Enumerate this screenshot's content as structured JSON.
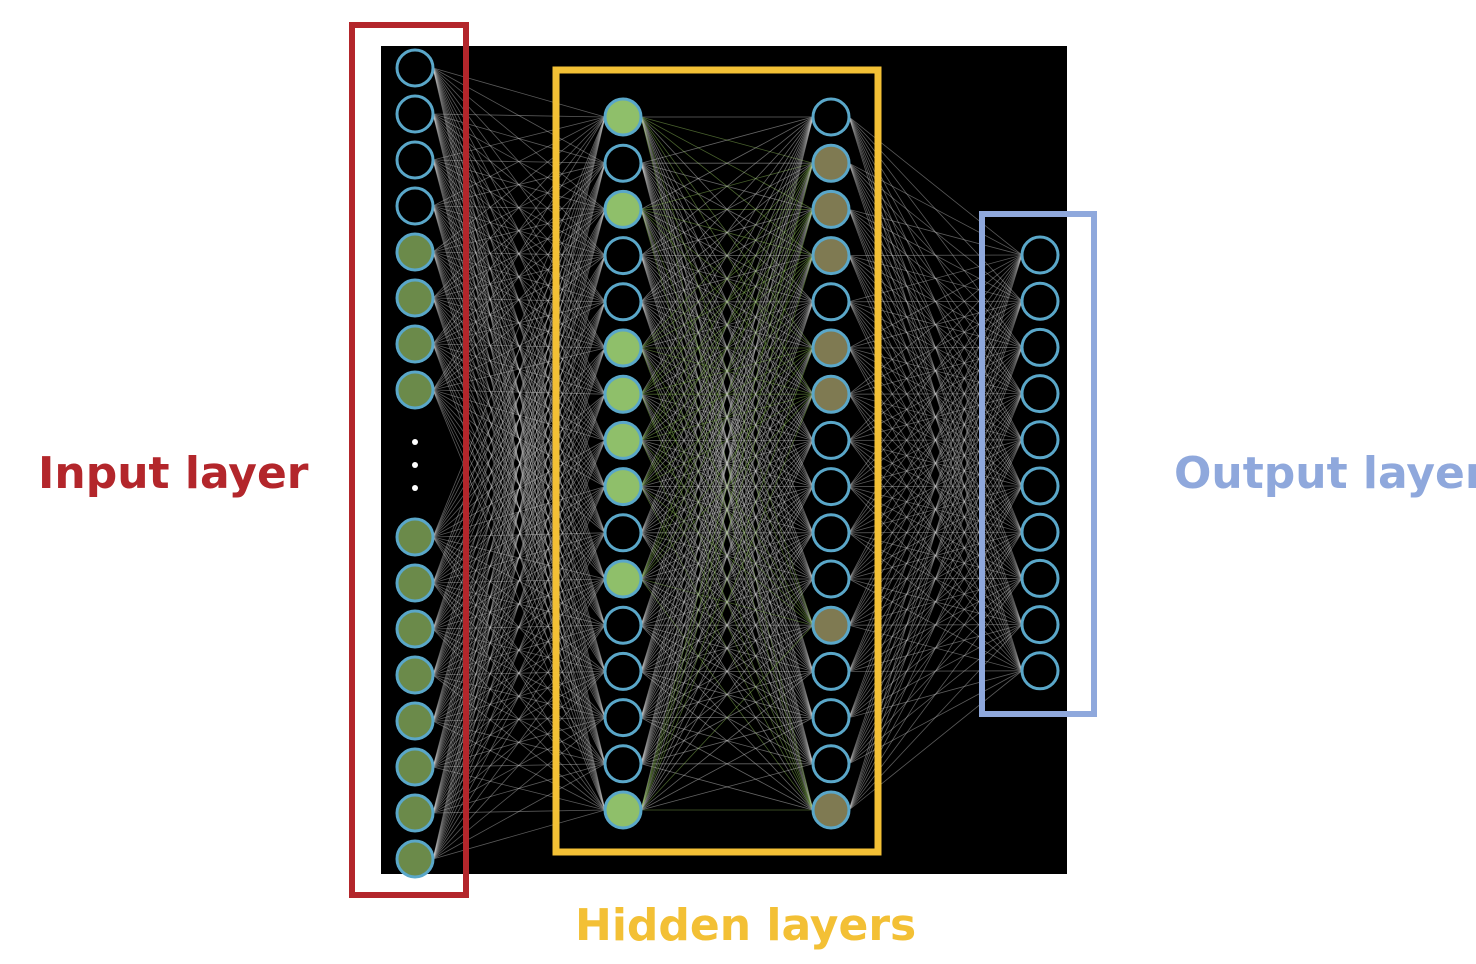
{
  "labels": {
    "input": "Input layer",
    "hidden": "Hidden layers",
    "output": "Output layer"
  },
  "colors": {
    "background": "#ffffff",
    "network_background": "#000000",
    "input_box": "#b3262b",
    "hidden_box": "#f3c035",
    "output_box": "#8fa8dc",
    "node_outline": "#5aa7c9",
    "edge": "#c8c8c8",
    "active_edge": "#8fbf5a",
    "node_active_light": "#8fbf6a",
    "node_active_mid": "#6b8a4a",
    "node_active_olive": "#7f7a52",
    "node_inactive": "#000000"
  },
  "network": {
    "input_layer": {
      "top_nodes": [
        "dark",
        "dark",
        "dark",
        "dark",
        "mid",
        "mid",
        "mid",
        "mid"
      ],
      "ellipsis": "⋮",
      "bottom_nodes": [
        "mid",
        "mid",
        "mid",
        "mid",
        "mid",
        "mid",
        "mid",
        "mid"
      ]
    },
    "hidden_layer_1": [
      "light",
      "dark",
      "light",
      "dark",
      "dark",
      "light",
      "light",
      "light",
      "light",
      "dark",
      "light",
      "dark",
      "dark",
      "dark",
      "dark",
      "light"
    ],
    "hidden_layer_2": [
      "dark",
      "olive",
      "olive",
      "olive",
      "dark",
      "olive",
      "olive",
      "dark",
      "dark",
      "dark",
      "dark",
      "olive",
      "dark",
      "dark",
      "dark",
      "olive"
    ],
    "output_layer": [
      "dark",
      "dark",
      "dark",
      "dark",
      "dark",
      "dark",
      "dark",
      "dark",
      "dark",
      "dark"
    ]
  }
}
